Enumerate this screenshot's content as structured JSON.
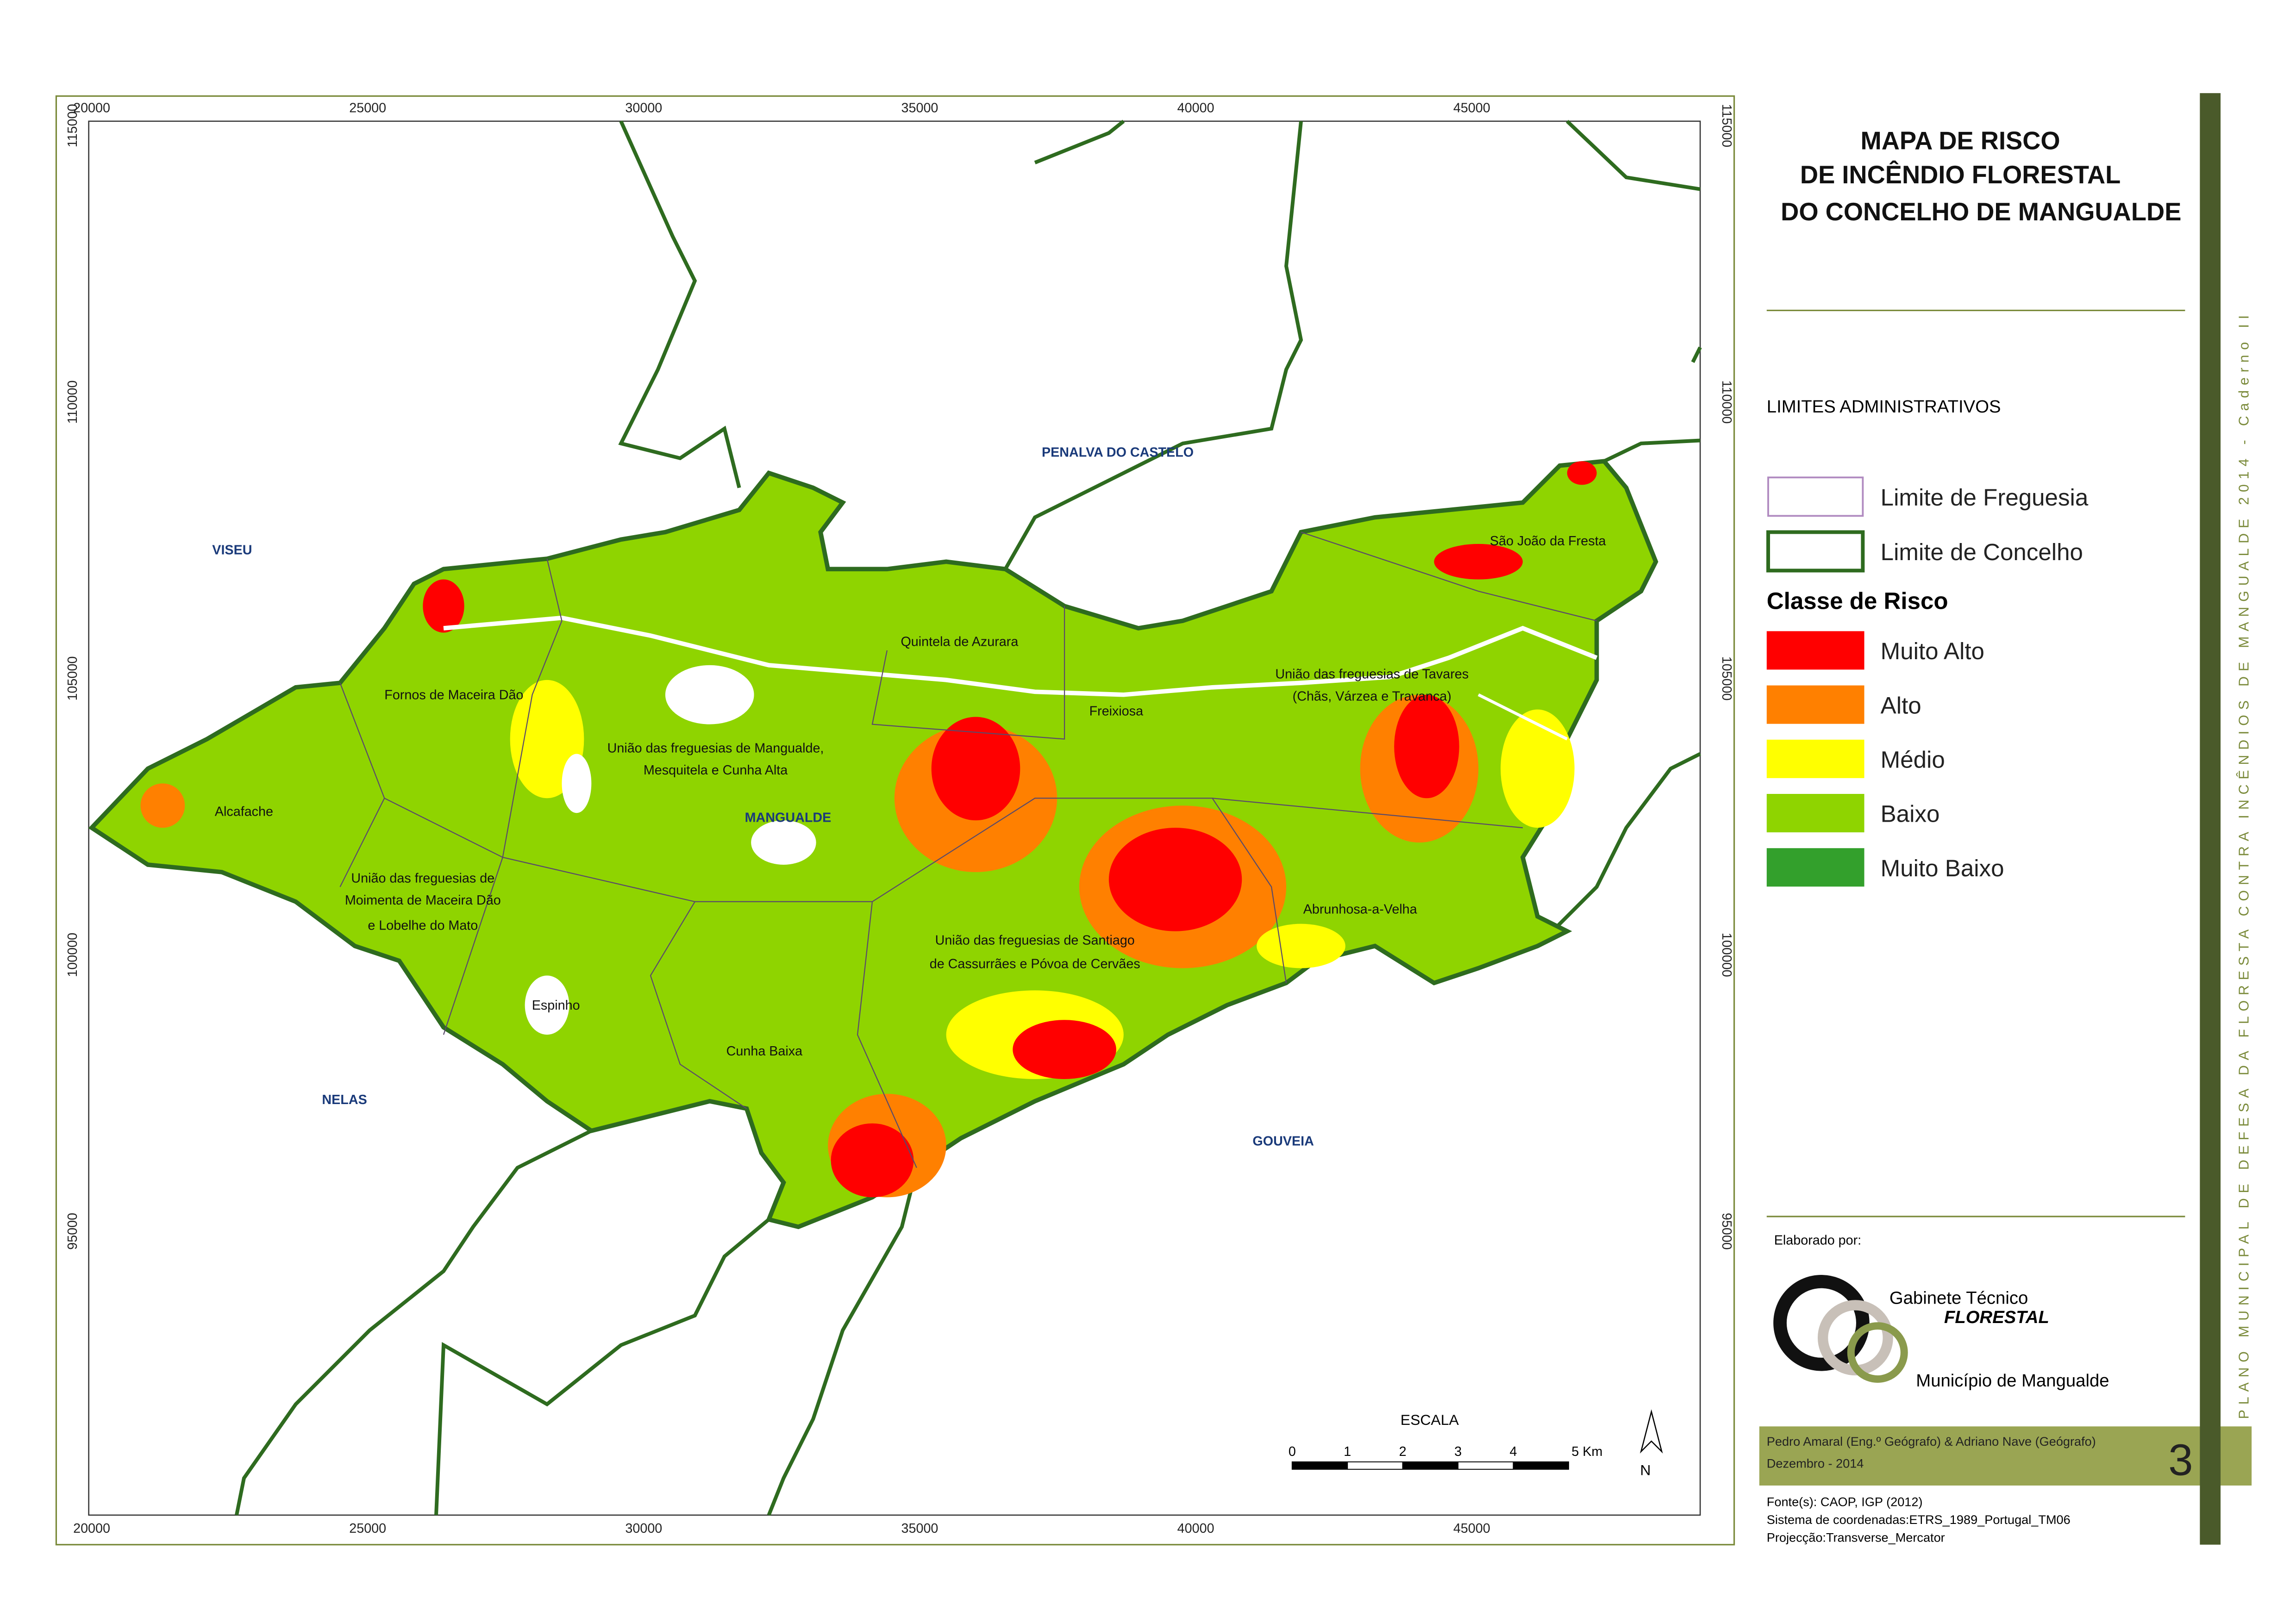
{
  "map": {
    "x_ticks": [
      20000,
      25000,
      30000,
      35000,
      40000,
      45000
    ],
    "y_ticks": [
      115000,
      110000,
      105000,
      100000,
      95000
    ],
    "neighbours": [
      "VISEU",
      "PENALVA DO CASTELO",
      "NELAS",
      "GOUVEIA",
      "MANGUALDE"
    ],
    "parishes": [
      "Fornos de Maceira Dão",
      "Alcafache",
      "União das freguesias de",
      "Moimenta de Maceira Dão",
      "e Lobelhe do Mato",
      "Espinho",
      "União das freguesias de Mangualde,",
      "Mesquitela e Cunha Alta",
      "Cunha Baixa",
      "Quintela de Azurara",
      "Freixiosa",
      "União das freguesias de Santiago",
      "de Cassurrães e Póvoa de Cervães",
      "Abrunhosa-a-Velha",
      "União das freguesias de Tavares",
      "(Chãs, Várzea e Travanca)",
      "São João da Fresta"
    ],
    "scale": {
      "title": "ESCALA",
      "labels": [
        "0",
        "1",
        "2",
        "3",
        "4",
        "5 Km"
      ]
    },
    "north": "N"
  },
  "panel": {
    "title": [
      "MAPA DE RISCO",
      "DE INCÊNDIO FLORESTAL",
      "DO CONCELHO DE MANGUALDE"
    ],
    "admin_title": "LIMITES ADMINISTRATIVOS",
    "admin": [
      {
        "name": "Limite de Freguesia",
        "color": "#b08ac0"
      },
      {
        "name": "Limite de Concelho",
        "color": "#2e6b1f"
      }
    ],
    "risk_title": "Classe de Risco",
    "risk": [
      {
        "name": "Muito Alto",
        "color": "#ff0000"
      },
      {
        "name": "Alto",
        "color": "#ff8000"
      },
      {
        "name": "Médio",
        "color": "#ffff00"
      },
      {
        "name": "Baixo",
        "color": "#8fd400"
      },
      {
        "name": "Muito Baixo",
        "color": "#33a02c"
      }
    ],
    "made_by": "Elaborado por:",
    "org1": "Gabinete Técnico",
    "org2": "FLORESTAL",
    "org3": "Município de Mangualde",
    "authors": "Pedro Amaral (Eng.º Geógrafo) & Adriano Nave (Geógrafo)",
    "date": "Dezembro - 2014",
    "page": "3",
    "sources": [
      "Fonte(s): CAOP, IGP (2012)",
      "Sistema de coordenadas:ETRS_1989_Portugal_TM06",
      "Projecção:Transverse_Mercator"
    ],
    "side": "PLANO MUNICIPAL DE DEFESA DA FLORESTA CONTRA INCÊNDIOS DE MANGUALDE 2014 - Caderno II"
  }
}
